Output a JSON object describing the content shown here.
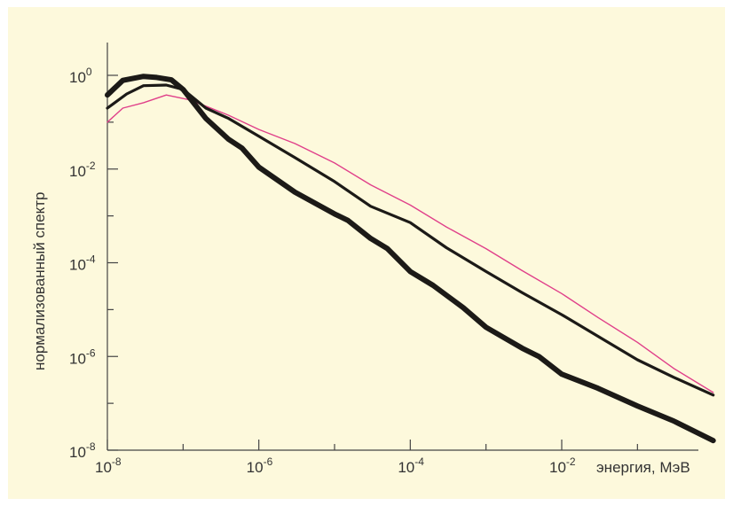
{
  "chart_data": {
    "type": "line",
    "title": "",
    "xlabel": "энергия, МэВ",
    "ylabel": "нормализованный спектр",
    "x_scale": "log",
    "y_scale": "log",
    "xlim": [
      1e-08,
      1
    ],
    "ylim": [
      1e-08,
      10
    ],
    "grid": false,
    "x_ticks": [
      {
        "value": 1e-08,
        "base": "10",
        "exp": "-8"
      },
      {
        "value": 1e-06,
        "base": "10",
        "exp": "-6"
      },
      {
        "value": 0.0001,
        "base": "10",
        "exp": "-4"
      },
      {
        "value": 0.01,
        "base": "10",
        "exp": "-2"
      }
    ],
    "y_ticks": [
      {
        "value": 1,
        "base": "10",
        "exp": "0"
      },
      {
        "value": 0.01,
        "base": "10",
        "exp": "-2"
      },
      {
        "value": 0.0001,
        "base": "10",
        "exp": "-4"
      },
      {
        "value": 1e-06,
        "base": "10",
        "exp": "-6"
      },
      {
        "value": 1e-08,
        "base": "10",
        "exp": "-8"
      }
    ],
    "series": [
      {
        "color": "#e0408a",
        "stroke_weight": "thin",
        "x": [
          1e-08,
          1.6e-08,
          3e-08,
          6e-08,
          1.2e-07,
          2e-07,
          4e-07,
          1e-06,
          3e-06,
          1e-05,
          3e-05,
          0.0001,
          0.0003,
          0.001,
          0.003,
          0.01,
          0.03,
          0.1,
          0.3,
          1
        ],
        "y": [
          0.1,
          0.2,
          0.26,
          0.38,
          0.3,
          0.22,
          0.14,
          0.07,
          0.035,
          0.0135,
          0.0046,
          0.0017,
          0.00058,
          0.0002,
          6.8e-05,
          2.2e-05,
          6.8e-06,
          2e-06,
          5.6e-07,
          1.7e-07
        ]
      },
      {
        "color": "#1c1a17",
        "stroke_weight": "medium",
        "x": [
          1e-08,
          1.8e-08,
          3e-08,
          6e-08,
          1e-07,
          2e-07,
          4e-07,
          1e-06,
          3e-06,
          1e-05,
          3e-05,
          0.0001,
          0.0003,
          0.001,
          0.003,
          0.01,
          0.03,
          0.1,
          0.3,
          1
        ],
        "y": [
          0.2,
          0.4,
          0.6,
          0.62,
          0.5,
          0.2,
          0.12,
          0.05,
          0.0175,
          0.0054,
          0.0016,
          0.00072,
          0.00021,
          6.5e-05,
          2.3e-05,
          7.8e-06,
          2.7e-06,
          8.5e-07,
          3.6e-07,
          1.5e-07
        ]
      },
      {
        "color": "#1c1a17",
        "stroke_weight": "thick",
        "x": [
          1e-08,
          1.6e-08,
          3e-08,
          4.5e-08,
          7e-08,
          1e-07,
          2e-07,
          4e-07,
          6e-07,
          1e-06,
          3e-06,
          1e-05,
          1.5e-05,
          3e-05,
          5e-05,
          0.0001,
          0.0002,
          0.0005,
          0.001,
          0.003,
          0.005,
          0.01,
          0.03,
          0.1,
          0.3,
          1
        ],
        "y": [
          0.38,
          0.78,
          0.95,
          0.9,
          0.8,
          0.5,
          0.12,
          0.043,
          0.028,
          0.011,
          0.0032,
          0.0011,
          0.0008,
          0.00033,
          0.0002,
          6.5e-05,
          3.3e-05,
          1.1e-05,
          4.2e-06,
          1.5e-06,
          1e-06,
          4.2e-07,
          2.1e-07,
          8.8e-08,
          4.2e-08,
          1.6e-08
        ]
      }
    ]
  }
}
